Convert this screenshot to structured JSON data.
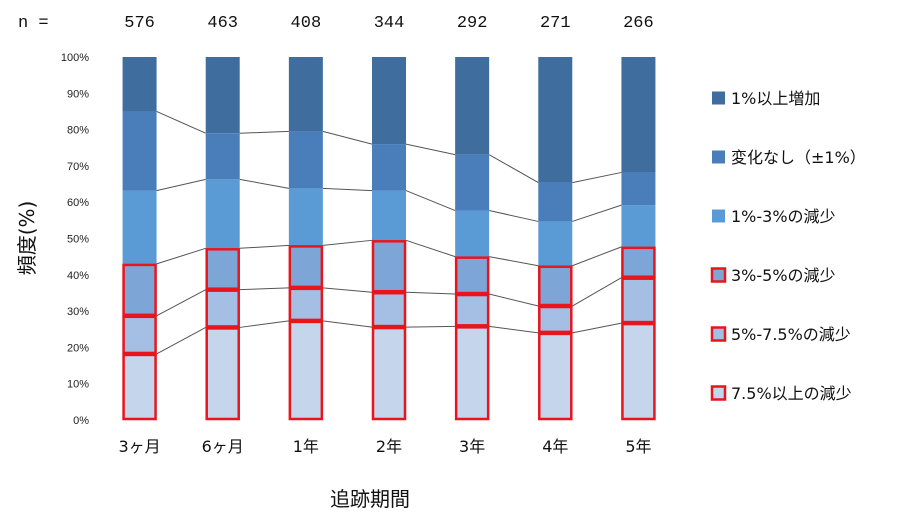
{
  "chart_data": {
    "type": "bar",
    "stacked": true,
    "xlabel": "追跡期間",
    "ylabel": "頻度(%)",
    "ylim": [
      0,
      100
    ],
    "yticks": [
      "0%",
      "10%",
      "20%",
      "30%",
      "40%",
      "50%",
      "60%",
      "70%",
      "80%",
      "90%",
      "100%"
    ],
    "categories": [
      "3ヶ月",
      "6ヶ月",
      "1年",
      "2年",
      "3年",
      "4年",
      "5年"
    ],
    "n_prefix": "n =",
    "n_values": [
      "576",
      "463",
      "408",
      "344",
      "292",
      "271",
      "266"
    ],
    "series": [
      {
        "name": "7.5%以上の減少",
        "values": [
          18.2,
          25.5,
          27.3,
          25.6,
          25.8,
          24.0,
          26.7
        ],
        "color": "#c5d5ec",
        "highlight": true
      },
      {
        "name": "5%-7.5%の減少",
        "values": [
          10.5,
          10.4,
          9.1,
          9.6,
          8.9,
          7.4,
          12.5
        ],
        "color": "#a5bfe4",
        "highlight": true
      },
      {
        "name": "3%-5%の減少",
        "values": [
          14.3,
          11.4,
          11.7,
          14.3,
          10.3,
          11.1,
          8.5
        ],
        "color": "#7da6d6",
        "highlight": true
      },
      {
        "name": "1%-3%の減少",
        "values": [
          20.2,
          19.0,
          15.7,
          13.7,
          12.7,
          12.2,
          11.5
        ],
        "color": "#5b9bd5",
        "highlight": false
      },
      {
        "name": "変化なし（±1%）",
        "values": [
          21.8,
          12.7,
          15.7,
          12.8,
          15.4,
          10.7,
          9.0
        ],
        "color": "#4a7ebb",
        "highlight": false
      },
      {
        "name": "1%以上増加",
        "values": [
          15.0,
          21.0,
          20.5,
          24.0,
          26.9,
          34.6,
          31.8
        ],
        "color": "#3f6d9e",
        "highlight": false
      }
    ],
    "legend_order": [
      5,
      4,
      3,
      2,
      1,
      0
    ],
    "highlight_color": "#e8151d",
    "connector_color": "#555555",
    "legend_position": "right",
    "grid": false
  }
}
